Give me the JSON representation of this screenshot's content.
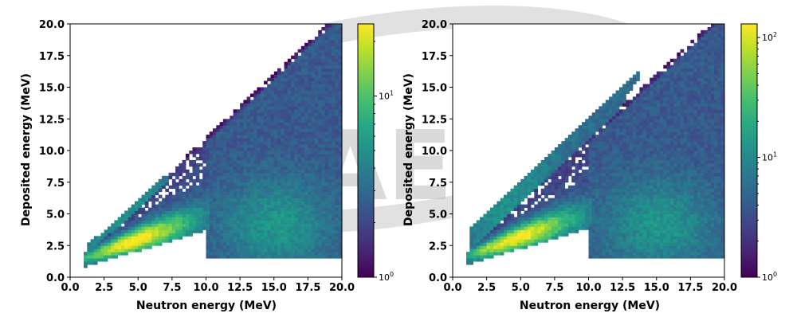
{
  "watermark": {
    "text": "KAERI"
  },
  "chart_data": [
    {
      "type": "heatmap",
      "xlabel": "Neutron energy (MeV)",
      "ylabel": "Deposited energy (MeV)",
      "xlim": [
        0.0,
        20.0
      ],
      "ylim": [
        0.0,
        20.0
      ],
      "xticks": [
        "0.0",
        "2.5",
        "5.0",
        "7.5",
        "10.0",
        "12.5",
        "15.0",
        "17.5",
        "20.0"
      ],
      "yticks": [
        "0.0",
        "2.5",
        "5.0",
        "7.5",
        "10.0",
        "12.5",
        "15.0",
        "17.5",
        "20.0"
      ],
      "colorbar": {
        "scale": "log",
        "min": 1,
        "max": 25,
        "ticks": [
          {
            "value": 1,
            "base": "10",
            "exp": "0"
          },
          {
            "value": 10,
            "base": "10",
            "exp": "1"
          }
        ],
        "colormap": "viridis"
      },
      "bands": [
        {
          "x_start": 1.0,
          "x_end": 20.0,
          "slope_low": 0.38,
          "slope_high": 1.0,
          "intercept_low": 0.45,
          "peak_y_at_x5": 3.8
        },
        {
          "x_start": 1.2,
          "x_end": 7.0,
          "offset_line_slope": 0.95,
          "offset_line_intercept": 1.8
        },
        {
          "x_start": 10.0,
          "x_end": 20.0,
          "y_low": 1.3,
          "y_high_slope": 1.0
        }
      ]
    },
    {
      "type": "heatmap",
      "xlabel": "Neutron energy (MeV)",
      "ylabel": "Deposited energy (MeV)",
      "xlim": [
        0.0,
        20.0
      ],
      "ylim": [
        0.0,
        20.0
      ],
      "xticks": [
        "0.0",
        "2.5",
        "5.0",
        "7.5",
        "10.0",
        "12.5",
        "15.0",
        "17.5",
        "20.0"
      ],
      "yticks": [
        "0.0",
        "2.5",
        "5.0",
        "7.5",
        "10.0",
        "12.5",
        "15.0",
        "17.5",
        "20.0"
      ],
      "colorbar": {
        "scale": "log",
        "min": 1,
        "max": 130,
        "ticks": [
          {
            "value": 1,
            "base": "10",
            "exp": "0"
          },
          {
            "value": 10,
            "base": "10",
            "exp": "1"
          },
          {
            "value": 100,
            "base": "10",
            "exp": "2"
          }
        ],
        "colormap": "viridis"
      },
      "bands": [
        {
          "x_start": 1.0,
          "x_end": 20.0,
          "slope_low": 0.38,
          "slope_high": 1.0,
          "intercept_low": 0.65,
          "peak_y_at_x5": 3.6
        },
        {
          "x_start": 1.2,
          "x_end": 12.0,
          "offset_line_slope": 1.0,
          "offset_line_intercept": 2.3,
          "multiple_lines": 4
        },
        {
          "x_start": 10.0,
          "x_end": 20.0,
          "y_low": 1.3,
          "y_high_slope": 1.0
        }
      ]
    }
  ]
}
